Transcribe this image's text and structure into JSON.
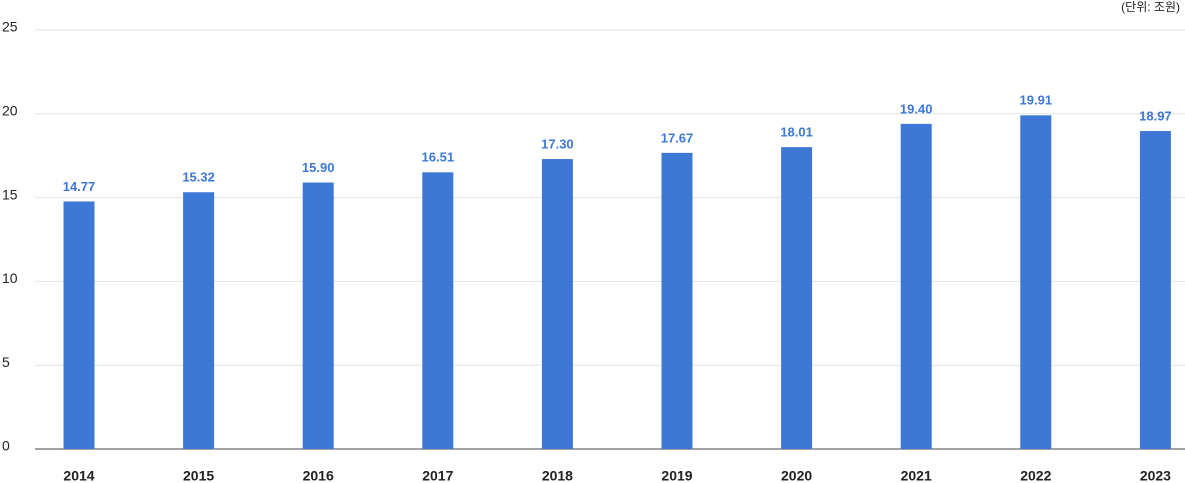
{
  "chart_data": {
    "type": "bar",
    "unit_label": "(단위: 조원)",
    "categories": [
      "2014",
      "2015",
      "2016",
      "2017",
      "2018",
      "2019",
      "2020",
      "2021",
      "2022",
      "2023"
    ],
    "values": [
      14.77,
      15.32,
      15.9,
      16.51,
      17.3,
      17.67,
      18.01,
      19.4,
      19.91,
      18.97
    ],
    "value_labels": [
      "14.77",
      "15.32",
      "15.90",
      "16.51",
      "17.30",
      "17.67",
      "18.01",
      "19.40",
      "19.91",
      "18.97"
    ],
    "color": "#3d78d6",
    "ylim": [
      0,
      25
    ],
    "yticks": [
      0,
      5,
      10,
      15,
      20,
      25
    ],
    "grid": true
  }
}
